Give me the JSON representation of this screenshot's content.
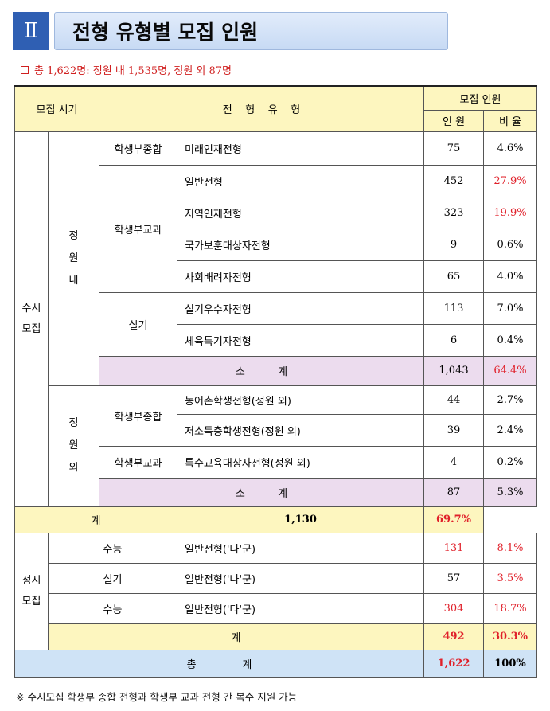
{
  "header": {
    "section_numeral": "Ⅱ",
    "title": "전형 유형별 모집 인원"
  },
  "summary": {
    "text": "총 1,622명: 정원 내 1,535명, 정원 외 87명"
  },
  "table": {
    "head": {
      "period": "모집 시기",
      "type": "전    형    유    형",
      "quota": "모집 인원",
      "count": "인 원",
      "ratio": "비 율"
    },
    "susi": {
      "period": "수시\n모집",
      "in_quota": {
        "label": "정\n원\n내",
        "comprehensive": {
          "group": "학생부종합",
          "rows": [
            {
              "name": "미래인재전형",
              "count": "75",
              "ratio": "4.6%"
            }
          ]
        },
        "subject": {
          "group": "학생부교과",
          "rows": [
            {
              "name": "일반전형",
              "count": "452",
              "ratio": "27.9%"
            },
            {
              "name": "지역인재전형",
              "count": "323",
              "ratio": "19.9%"
            },
            {
              "name": "국가보훈대상자전형",
              "count": "9",
              "ratio": "0.6%"
            },
            {
              "name": "사회배려자전형",
              "count": "65",
              "ratio": "4.0%"
            }
          ]
        },
        "practical": {
          "group": "실기",
          "rows": [
            {
              "name": "실기우수자전형",
              "count": "113",
              "ratio": "7.0%"
            },
            {
              "name": "체육특기자전형",
              "count": "6",
              "ratio": "0.4%"
            }
          ]
        },
        "subtotal": {
          "label": "소          계",
          "count": "1,043",
          "ratio": "64.4%"
        }
      },
      "out_quota": {
        "label": "정\n원\n외",
        "comprehensive": {
          "group": "학생부종합",
          "rows": [
            {
              "name": "농어촌학생전형(정원 외)",
              "count": "44",
              "ratio": "2.7%"
            },
            {
              "name": "저소득층학생전형(정원 외)",
              "count": "39",
              "ratio": "2.4%"
            }
          ]
        },
        "subject": {
          "group": "학생부교과",
          "rows": [
            {
              "name": "특수교육대상자전형(정원 외)",
              "count": "4",
              "ratio": "0.2%"
            }
          ]
        },
        "subtotal": {
          "label": "소          계",
          "count": "87",
          "ratio": "5.3%"
        }
      },
      "total": {
        "label": "계",
        "count": "1,130",
        "ratio": "69.7%"
      }
    },
    "jeongsi": {
      "period": "정시\n모집",
      "rows": [
        {
          "group": "수능",
          "name": "일반전형('나'군)",
          "count": "131",
          "ratio": "8.1%"
        },
        {
          "group": "실기",
          "name": "일반전형('나'군)",
          "count": "57",
          "ratio": "3.5%"
        },
        {
          "group": "수능",
          "name": "일반전형('다'군)",
          "count": "304",
          "ratio": "18.7%"
        }
      ],
      "total": {
        "label": "계",
        "count": "492",
        "ratio": "30.3%"
      }
    },
    "grand_total": {
      "label": "총              계",
      "count": "1,622",
      "ratio": "100%"
    }
  },
  "note": "※ 수시모집 학생부 종합 전형과 학생부 교과 전형 간 복수 지원 가능"
}
